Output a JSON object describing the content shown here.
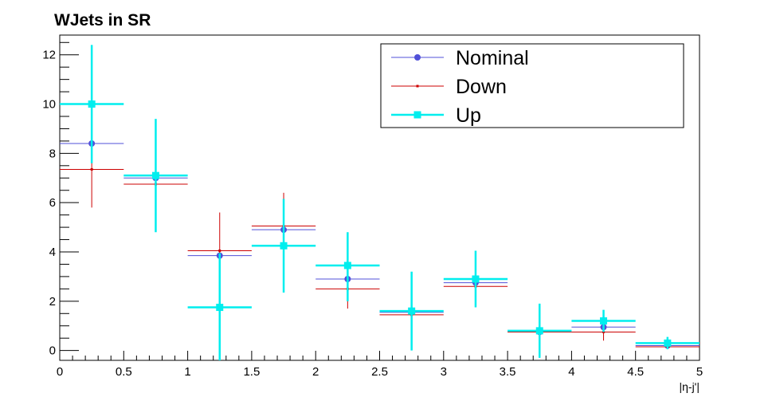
{
  "chart_data": {
    "type": "scatter",
    "title": "WJets in SR",
    "xlabel": "|η-j'|",
    "ylabel": "",
    "xlim": [
      0,
      5
    ],
    "ylim": [
      -0.4,
      12.8
    ],
    "x_ticks": [
      0,
      0.5,
      1,
      1.5,
      2,
      2.5,
      3,
      3.5,
      4,
      4.5,
      5
    ],
    "x_tick_labels": [
      "0",
      "0.5",
      "1",
      "1.5",
      "2",
      "2.5",
      "3",
      "3.5",
      "4",
      "4.5",
      "5"
    ],
    "y_ticks": [
      0,
      2,
      4,
      6,
      8,
      10,
      12
    ],
    "y_tick_labels": [
      "0",
      "2",
      "4",
      "6",
      "8",
      "10",
      "12"
    ],
    "grid": false,
    "legend_position": "top-right",
    "bin_edges": [
      0,
      0.5,
      1,
      1.5,
      2,
      2.5,
      3,
      3.5,
      4,
      4.5,
      5
    ],
    "series": [
      {
        "name": "Nominal",
        "color": "#5050d8",
        "marker": "circle",
        "x": [
          0.25,
          0.75,
          1.25,
          1.75,
          2.25,
          2.75,
          3.25,
          3.75,
          4.25,
          4.75
        ],
        "y": [
          8.4,
          7.0,
          3.85,
          4.9,
          2.9,
          1.55,
          2.75,
          0.75,
          0.95,
          0.2
        ],
        "y_err_low": [
          0,
          0,
          0,
          0,
          0,
          0,
          0,
          0,
          0,
          0
        ],
        "y_err_high": [
          0,
          0,
          0,
          0,
          0,
          0,
          0,
          0,
          0,
          0
        ]
      },
      {
        "name": "Down",
        "color": "#cc0000",
        "marker": "dot",
        "x": [
          0.25,
          0.75,
          1.25,
          1.75,
          2.25,
          2.75,
          3.25,
          3.75,
          4.25,
          4.75
        ],
        "y": [
          7.35,
          6.75,
          4.05,
          5.05,
          2.5,
          1.45,
          2.6,
          0.75,
          0.75,
          0.15
        ],
        "y_err_low": [
          1.55,
          0,
          1.6,
          0,
          0.8,
          0,
          0,
          0,
          0.35,
          0
        ],
        "y_err_high": [
          0.3,
          0,
          1.55,
          1.35,
          0,
          0,
          0,
          0,
          0,
          0
        ]
      },
      {
        "name": "Up",
        "color": "#00eeee",
        "marker": "square",
        "x": [
          0.25,
          0.75,
          1.25,
          1.75,
          2.25,
          2.75,
          3.25,
          3.75,
          4.25,
          4.75
        ],
        "y": [
          10.0,
          7.1,
          1.75,
          4.25,
          3.45,
          1.6,
          2.9,
          0.8,
          1.2,
          0.3
        ],
        "y_err_low": [
          2.4,
          2.3,
          2.2,
          1.9,
          1.45,
          1.6,
          1.15,
          1.1,
          0.45,
          0.25
        ],
        "y_err_high": [
          2.4,
          2.3,
          2.2,
          1.9,
          1.35,
          1.6,
          1.15,
          1.1,
          0.45,
          0.25
        ]
      }
    ]
  }
}
